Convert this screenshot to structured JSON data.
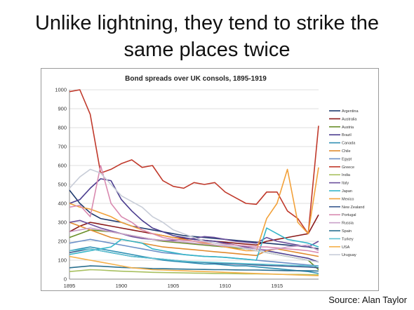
{
  "slide": {
    "title_line1": "Unlike lightning, they tend to strike the",
    "title_line2": "same places twice",
    "source": "Source: Alan Taylor"
  },
  "chart_data": {
    "type": "line",
    "title": "Bond spreads over UK consols, 1895-1919",
    "xlabel": "",
    "ylabel": "",
    "xlim": [
      1895,
      1919
    ],
    "ylim": [
      0,
      1000
    ],
    "x_ticks": [
      1895,
      1900,
      1905,
      1910,
      1915
    ],
    "y_ticks": [
      0,
      100,
      200,
      300,
      400,
      500,
      600,
      700,
      800,
      900,
      1000
    ],
    "grid": "horizontal",
    "legend_position": "right",
    "x": [
      1895,
      1896,
      1897,
      1898,
      1899,
      1900,
      1901,
      1902,
      1903,
      1904,
      1905,
      1906,
      1907,
      1908,
      1909,
      1910,
      1911,
      1912,
      1913,
      1914,
      1915,
      1916,
      1917,
      1918,
      1919
    ],
    "series": [
      {
        "name": "Argentina",
        "color": "#1f3a6e",
        "values": [
          470,
          400,
          350,
          320,
          310,
          300,
          280,
          270,
          260,
          250,
          240,
          230,
          225,
          220,
          215,
          210,
          205,
          200,
          195,
          190,
          185,
          180,
          175,
          170,
          160
        ]
      },
      {
        "name": "Australia",
        "color": "#8b1a1a",
        "values": [
          250,
          280,
          300,
          290,
          280,
          270,
          260,
          250,
          240,
          230,
          220,
          215,
          210,
          205,
          200,
          195,
          190,
          185,
          180,
          200,
          210,
          220,
          230,
          240,
          340
        ]
      },
      {
        "name": "Austria",
        "color": "#6a8f2a",
        "values": [
          220,
          240,
          260,
          255,
          250,
          240,
          230,
          220,
          210,
          200,
          195,
          190,
          185,
          180,
          175,
          170,
          165,
          160,
          150,
          140,
          130,
          120,
          110,
          100,
          50
        ]
      },
      {
        "name": "Brazil",
        "color": "#4b3d8f",
        "values": [
          400,
          420,
          480,
          530,
          520,
          420,
          360,
          310,
          270,
          250,
          230,
          220,
          210,
          205,
          200,
          190,
          180,
          170,
          160,
          150,
          140,
          130,
          120,
          110,
          90
        ]
      },
      {
        "name": "Canada",
        "color": "#2f8fb3",
        "values": [
          150,
          160,
          170,
          160,
          150,
          140,
          130,
          120,
          110,
          100,
          95,
          90,
          85,
          80,
          80,
          75,
          70,
          70,
          65,
          60,
          55,
          50,
          45,
          40,
          30
        ]
      },
      {
        "name": "Chile",
        "color": "#e08a2e",
        "values": [
          300,
          280,
          260,
          240,
          220,
          210,
          200,
          190,
          180,
          170,
          165,
          160,
          155,
          150,
          145,
          140,
          135,
          130,
          125,
          150,
          160,
          150,
          140,
          130,
          120
        ]
      },
      {
        "name": "Egypt",
        "color": "#6b8fc7",
        "values": [
          190,
          200,
          210,
          200,
          190,
          180,
          170,
          160,
          150,
          140,
          135,
          130,
          125,
          120,
          118,
          115,
          110,
          105,
          100,
          95,
          90,
          85,
          80,
          75,
          70
        ]
      },
      {
        "name": "Greece",
        "color": "#c0392b",
        "values": [
          990,
          1000,
          870,
          560,
          580,
          610,
          630,
          590,
          600,
          520,
          490,
          480,
          510,
          500,
          510,
          460,
          430,
          400,
          395,
          460,
          460,
          360,
          320,
          240,
          810
        ]
      },
      {
        "name": "India",
        "color": "#a8c060",
        "values": [
          40,
          45,
          50,
          48,
          45,
          42,
          40,
          38,
          36,
          35,
          34,
          33,
          32,
          31,
          30,
          30,
          29,
          28,
          28,
          27,
          26,
          25,
          25,
          24,
          23
        ]
      },
      {
        "name": "Italy",
        "color": "#6b4f9c",
        "values": [
          300,
          310,
          290,
          270,
          255,
          240,
          225,
          215,
          210,
          205,
          205,
          210,
          215,
          225,
          220,
          210,
          200,
          195,
          190,
          220,
          200,
          190,
          180,
          170,
          200
        ]
      },
      {
        "name": "Japan",
        "color": "#35b5c8",
        "values": [
          130,
          140,
          150,
          160,
          170,
          210,
          200,
          190,
          160,
          150,
          140,
          130,
          125,
          120,
          118,
          115,
          110,
          105,
          100,
          270,
          240,
          210,
          200,
          190,
          170
        ]
      },
      {
        "name": "Mexico",
        "color": "#f2a13a",
        "values": [
          400,
          380,
          370,
          350,
          330,
          300,
          280,
          260,
          240,
          230,
          220,
          210,
          200,
          190,
          180,
          170,
          160,
          150,
          150,
          320,
          400,
          580,
          300,
          240,
          590
        ]
      },
      {
        "name": "New Zealand",
        "color": "#3b5b8f",
        "values": [
          140,
          150,
          160,
          150,
          140,
          130,
          120,
          115,
          110,
          105,
          100,
          95,
          90,
          88,
          85,
          82,
          80,
          78,
          75,
          72,
          70,
          68,
          66,
          64,
          60
        ]
      },
      {
        "name": "Portugal",
        "color": "#d98ab0",
        "values": [
          380,
          390,
          330,
          600,
          400,
          330,
          300,
          260,
          240,
          220,
          210,
          205,
          200,
          195,
          190,
          185,
          180,
          175,
          170,
          170,
          165,
          160,
          155,
          150,
          140
        ]
      },
      {
        "name": "Russia",
        "color": "#c9a0c9",
        "values": [
          250,
          260,
          270,
          260,
          250,
          240,
          230,
          220,
          210,
          205,
          200,
          195,
          190,
          185,
          180,
          175,
          170,
          165,
          160,
          155,
          160,
          170,
          175,
          180,
          150
        ]
      },
      {
        "name": "Spain",
        "color": "#2a6f8f",
        "values": [
          60,
          65,
          70,
          68,
          65,
          62,
          60,
          58,
          56,
          55,
          54,
          53,
          52,
          51,
          50,
          50,
          49,
          48,
          48,
          47,
          46,
          45,
          45,
          44,
          43
        ]
      },
      {
        "name": "Turkey",
        "color": "#5dc2d2",
        "values": [
          150,
          155,
          160,
          150,
          140,
          130,
          120,
          115,
          110,
          105,
          100,
          95,
          92,
          90,
          88,
          86,
          84,
          82,
          80,
          78,
          76,
          74,
          72,
          70,
          68
        ]
      },
      {
        "name": "USA",
        "color": "#f5b04a",
        "values": [
          120,
          110,
          100,
          90,
          80,
          70,
          60,
          55,
          50,
          48,
          46,
          44,
          42,
          40,
          38,
          36,
          34,
          32,
          30,
          28,
          26,
          24,
          22,
          20,
          18
        ]
      },
      {
        "name": "Uruguay",
        "color": "#c8cdd8",
        "values": [
          480,
          540,
          580,
          560,
          500,
          440,
          410,
          380,
          330,
          300,
          260,
          240,
          220,
          200,
          190,
          180,
          170,
          160,
          150,
          140,
          130,
          120,
          110,
          100,
          90
        ]
      }
    ]
  }
}
